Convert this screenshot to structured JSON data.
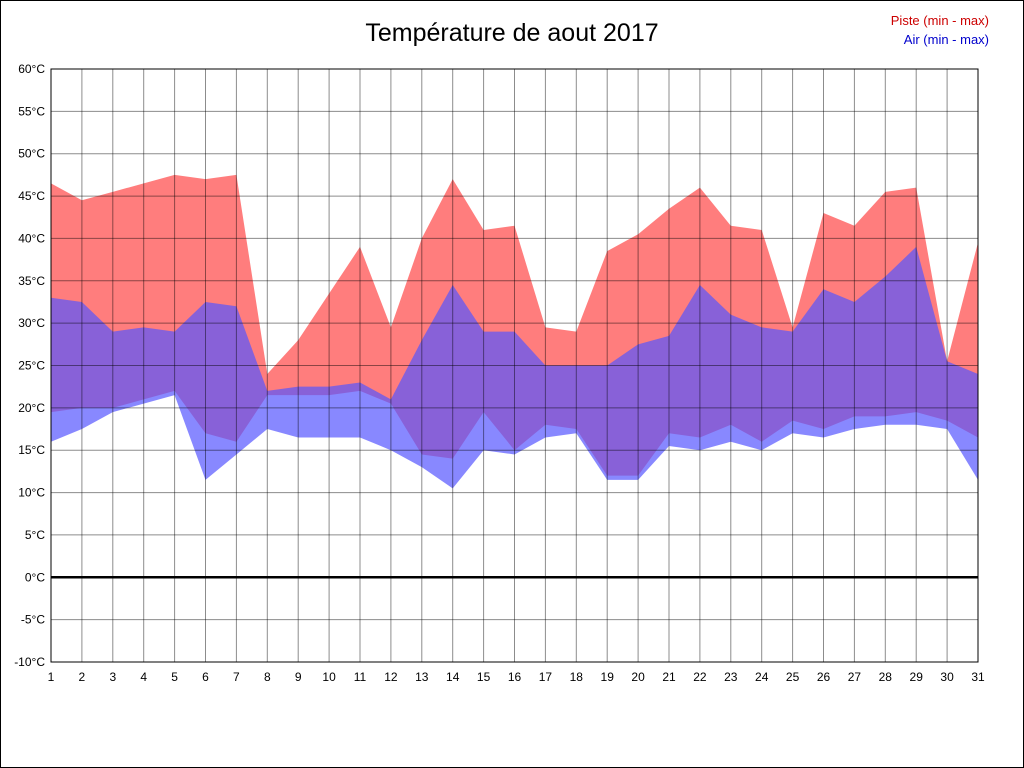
{
  "title": "Température de aout 2017",
  "legend": {
    "piste_label": "Piste (min - max)",
    "air_label": "Air (min - max)"
  },
  "colors": {
    "piste_fill": "#ff7d7d",
    "air_fill": "#5555ff",
    "air_opacity": 0.7,
    "grid": "rgba(0,0,0,0.45)",
    "zero_line": "#000000",
    "piste_text": "#cc0000",
    "air_text": "#0000cc"
  },
  "chart_data": {
    "type": "area",
    "title": "Température de aout 2017",
    "xlabel": "",
    "ylabel": "",
    "x": [
      1,
      2,
      3,
      4,
      5,
      6,
      7,
      8,
      9,
      10,
      11,
      12,
      13,
      14,
      15,
      16,
      17,
      18,
      19,
      20,
      21,
      22,
      23,
      24,
      25,
      26,
      27,
      28,
      29,
      30,
      31
    ],
    "ylim": [
      -10,
      60
    ],
    "y_tick_step": 5,
    "y_tick_suffix": "°C",
    "grid": true,
    "legend_position": "top-right",
    "series": [
      {
        "name": "Piste (min - max)",
        "min": [
          19.5,
          20,
          20,
          21,
          22,
          17,
          16,
          21.5,
          21.5,
          21.5,
          22,
          20.5,
          14.5,
          14,
          19.5,
          15,
          18,
          17.5,
          12,
          12,
          17,
          16.5,
          18,
          16,
          18.5,
          17.5,
          19,
          19,
          19.5,
          18.5,
          16.5
        ],
        "max": [
          46.5,
          44.5,
          45.5,
          46.5,
          47.5,
          47,
          47.5,
          24,
          28,
          33.5,
          39,
          29.5,
          40,
          47,
          41,
          41.5,
          29.5,
          29,
          38.5,
          40.5,
          43.5,
          46,
          41.5,
          41,
          29.5,
          43,
          41.5,
          45.5,
          46,
          25.5,
          39.5
        ]
      },
      {
        "name": "Air (min - max)",
        "min": [
          16,
          17.5,
          19.5,
          20.5,
          21.5,
          11.5,
          14.5,
          17.5,
          16.5,
          16.5,
          16.5,
          15,
          13,
          10.5,
          15,
          14.5,
          16.5,
          17,
          11.5,
          11.5,
          15.5,
          15,
          16,
          15,
          17,
          16.5,
          17.5,
          18,
          18,
          17.5,
          11.5
        ],
        "max": [
          33,
          32.5,
          29,
          29.5,
          29,
          32.5,
          32,
          22,
          22.5,
          22.5,
          23,
          21,
          28,
          34.5,
          29,
          29,
          25,
          25,
          25,
          27.5,
          28.5,
          34.5,
          31,
          29.5,
          29,
          34,
          32.5,
          35.5,
          39,
          25.5,
          24
        ]
      }
    ]
  }
}
